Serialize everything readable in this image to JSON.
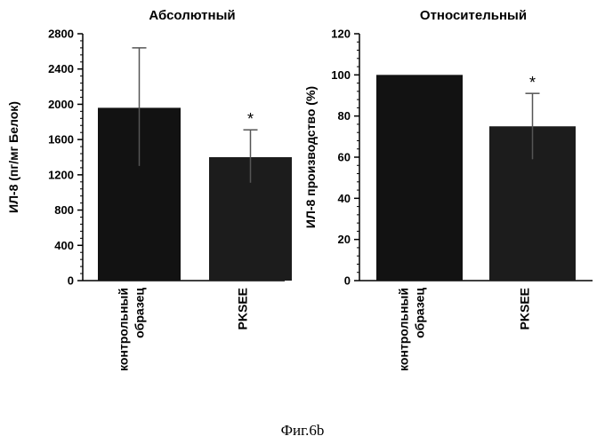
{
  "caption": "Фиг.6b",
  "chart_data": [
    {
      "type": "bar",
      "title": "Абсолютный",
      "ylabel": "ИЛ-8 (пг/мг Белок)",
      "xlabel": "",
      "categories": [
        "контрольный образец",
        "PKSEE"
      ],
      "category_lines": [
        [
          "контрольный",
          "образец"
        ],
        [
          "PKSEE"
        ]
      ],
      "values": [
        1960,
        1400
      ],
      "error_upper": [
        2640,
        1710
      ],
      "error_lower": [
        1300,
        1110
      ],
      "significance": [
        "",
        "*"
      ],
      "ylim": [
        0,
        2800
      ],
      "yticks": [
        0,
        400,
        800,
        1200,
        1600,
        2000,
        2400,
        2800
      ],
      "bar_colors": [
        "#121212",
        "#1c1c1c"
      ],
      "grid": false,
      "legend": "none"
    },
    {
      "type": "bar",
      "title": "Относительный",
      "ylabel": "ИЛ-8 производство (%)",
      "xlabel": "",
      "categories": [
        "контрольный образец",
        "PKSEE"
      ],
      "category_lines": [
        [
          "контрольный",
          "образец"
        ],
        [
          "PKSEE"
        ]
      ],
      "values": [
        100,
        75
      ],
      "error_upper": [
        null,
        91
      ],
      "error_lower": [
        null,
        59
      ],
      "significance": [
        "",
        "*"
      ],
      "ylim": [
        0,
        120
      ],
      "yticks": [
        0,
        20,
        40,
        60,
        80,
        100,
        120
      ],
      "bar_colors": [
        "#121212",
        "#1c1c1c"
      ],
      "grid": false,
      "legend": "none"
    }
  ]
}
